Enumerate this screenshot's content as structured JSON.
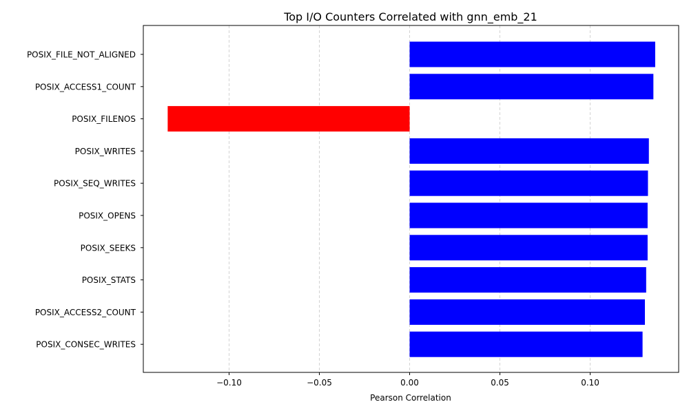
{
  "chart_data": {
    "type": "bar",
    "orientation": "horizontal",
    "title": "Top I/O Counters Correlated with gnn_emb_21",
    "xlabel": "Pearson Correlation",
    "ylabel": "",
    "xlim": [
      -0.1475,
      0.149
    ],
    "xticks": [
      -0.1,
      -0.05,
      0.0,
      0.05,
      0.1
    ],
    "xtick_labels": [
      "−0.10",
      "−0.05",
      "0.00",
      "0.05",
      "0.10"
    ],
    "grid": "x-dashed",
    "categories": [
      "POSIX_FILE_NOT_ALIGNED",
      "POSIX_ACCESS1_COUNT",
      "POSIX_FILENOS",
      "POSIX_WRITES",
      "POSIX_SEQ_WRITES",
      "POSIX_OPENS",
      "POSIX_SEEKS",
      "POSIX_STATS",
      "POSIX_ACCESS2_COUNT",
      "POSIX_CONSEC_WRITES"
    ],
    "values": [
      0.136,
      0.135,
      -0.134,
      0.1325,
      0.132,
      0.1318,
      0.1318,
      0.131,
      0.1303,
      0.129
    ],
    "colors": {
      "positive": "#0000ff",
      "negative": "#ff0000"
    }
  }
}
